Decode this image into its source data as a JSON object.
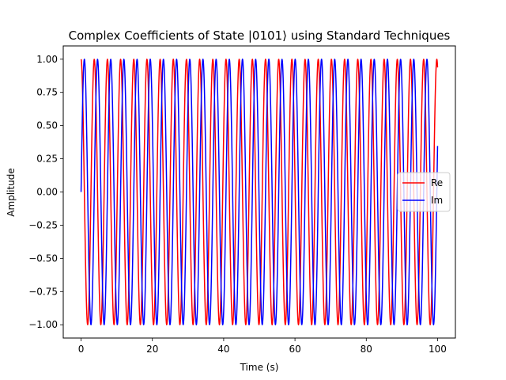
{
  "chart_data": {
    "type": "line",
    "title": "Complex Coefficients of State |0101⟩ using Standard Techniques",
    "xlabel": "Time (s)",
    "ylabel": "Amplitude",
    "xlim": [
      -5,
      105
    ],
    "ylim": [
      -1.1,
      1.1
    ],
    "xticks": [
      0,
      20,
      40,
      60,
      80,
      100
    ],
    "xtick_labels": [
      "0",
      "20",
      "40",
      "60",
      "80",
      "100"
    ],
    "yticks": [
      -1.0,
      -0.75,
      -0.5,
      -0.25,
      0.0,
      0.25,
      0.5,
      0.75,
      1.0
    ],
    "ytick_labels": [
      "−1.00",
      "−0.75",
      "−0.50",
      "−0.25",
      "0.00",
      "0.25",
      "0.50",
      "0.75",
      "1.00"
    ],
    "grid": false,
    "legend_position": "center-right",
    "x_range": [
      0,
      100
    ],
    "angular_frequency": 1.7,
    "sample_count": 1500,
    "series": [
      {
        "name": "Re",
        "function": "cos(angular_frequency * t)",
        "color": "#ff0000"
      },
      {
        "name": "Im",
        "function": "sin(angular_frequency * t)",
        "color": "#0000ff"
      }
    ]
  }
}
